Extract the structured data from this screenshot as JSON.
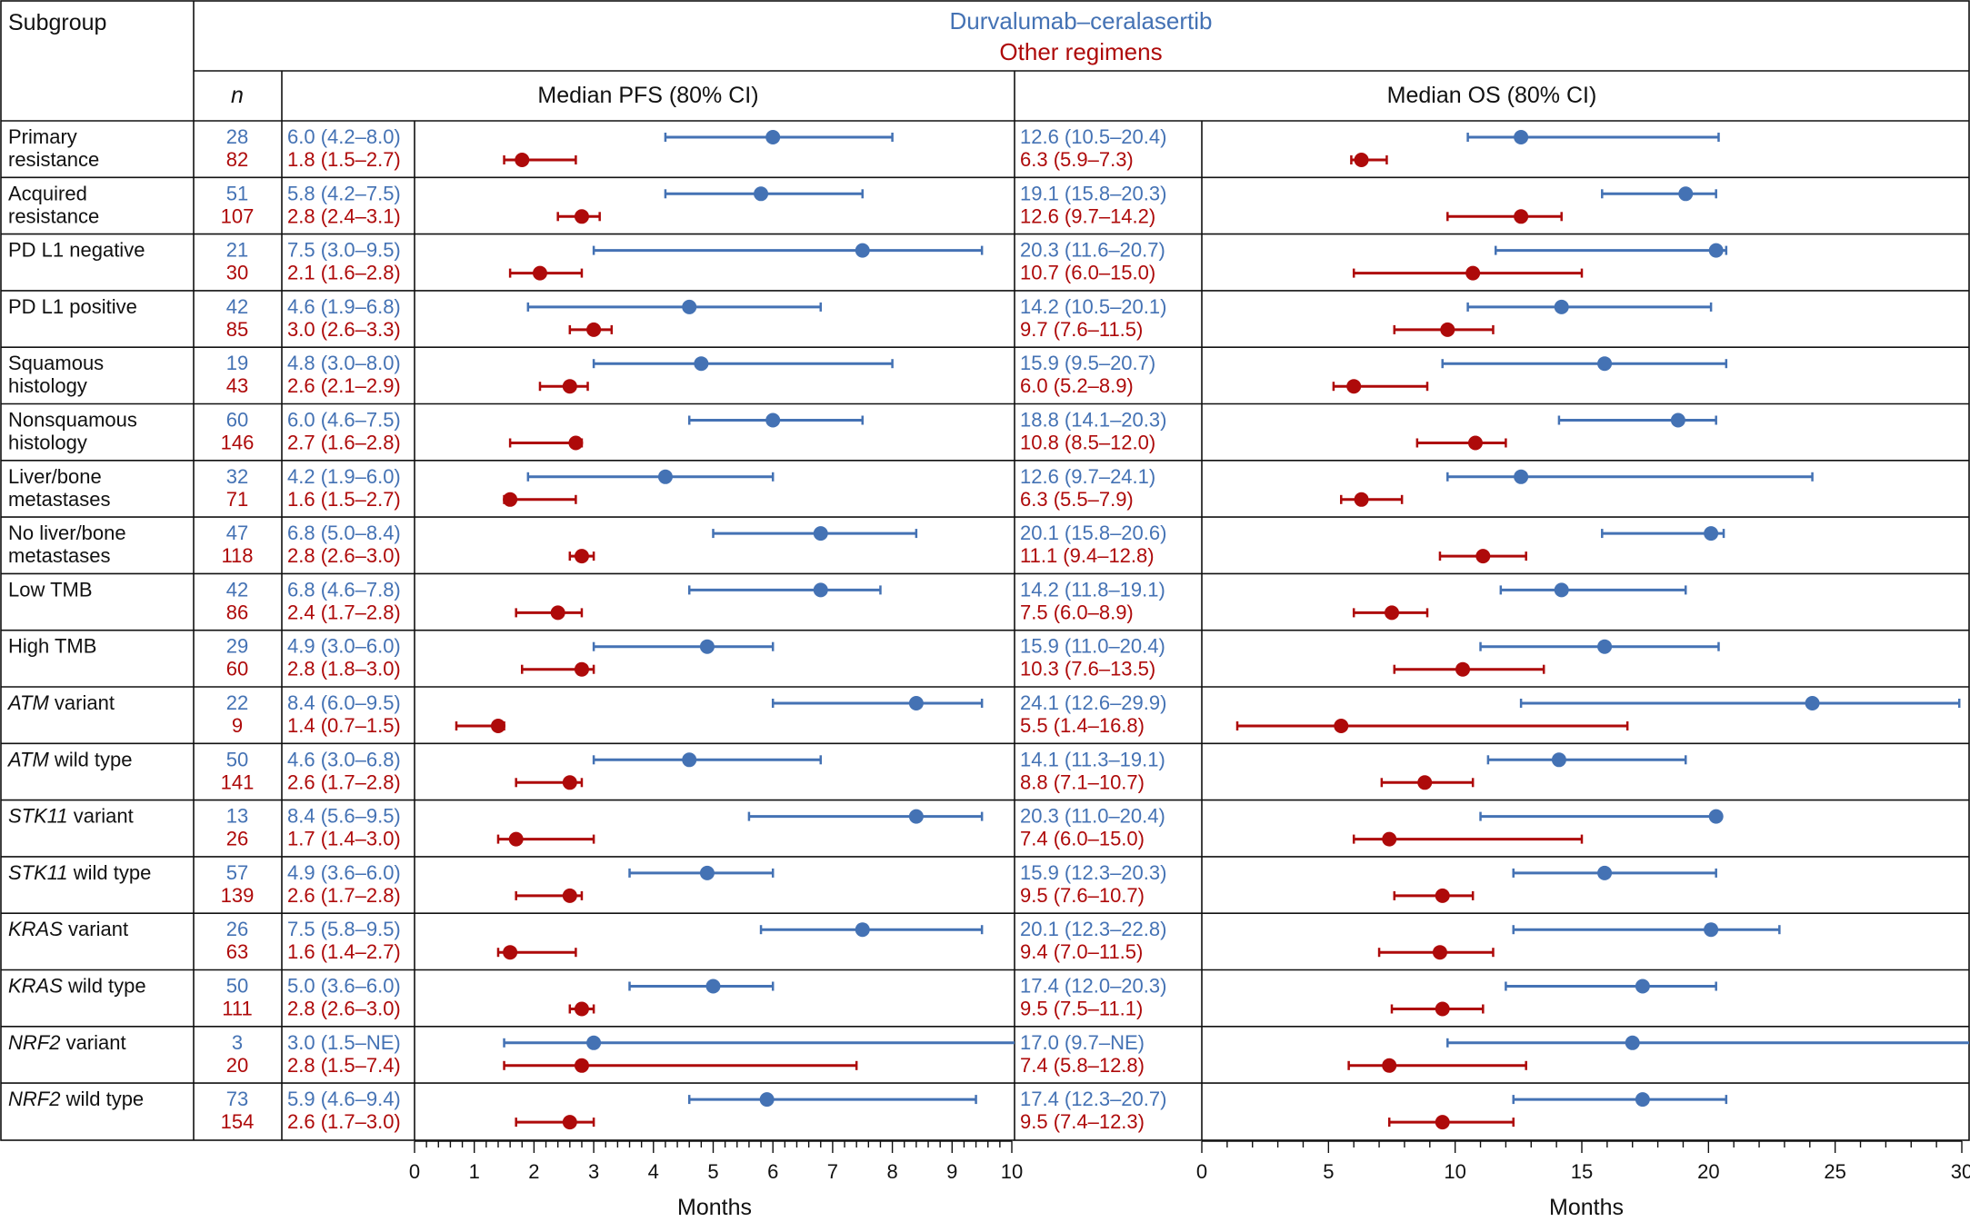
{
  "colors": {
    "durvalumab": "#4472b4",
    "other": "#ae0a0a",
    "line": "#111111"
  },
  "header": {
    "subgroup_label": "Subgroup",
    "n_label": "n",
    "pfs_label": "Median PFS (80% CI)",
    "os_label": "Median OS (80% CI)"
  },
  "chart_data": [
    {
      "type": "forest",
      "title": "Median PFS (80% CI)",
      "xlabel": "Months",
      "xlim": [
        0,
        10
      ],
      "major_ticks": [
        "0",
        "1",
        "2",
        "3",
        "4",
        "5",
        "6",
        "7",
        "8",
        "9",
        "10"
      ],
      "legend": [
        "Durvalumab–ceralasertib",
        "Other regimens"
      ]
    },
    {
      "type": "forest",
      "title": "Median OS (80% CI)",
      "xlabel": "Months",
      "xlim": [
        0,
        30
      ],
      "major_ticks": [
        "0",
        "5",
        "10",
        "15",
        "20",
        "25",
        "30"
      ],
      "legend": [
        "Durvalumab–ceralasertib",
        "Other regimens"
      ]
    }
  ],
  "rows": [
    {
      "label": "Primary resistance",
      "italic": "",
      "rest": "",
      "n": [
        28,
        82
      ],
      "pfs_text": [
        "6.0 (4.2–8.0)",
        "1.8 (1.5–2.7)"
      ],
      "pfs": [
        [
          6.0,
          4.2,
          8.0
        ],
        [
          1.8,
          1.5,
          2.7
        ]
      ],
      "os_text": [
        "12.6 (10.5–20.4)",
        "6.3 (5.9–7.3)"
      ],
      "os": [
        [
          12.6,
          10.5,
          20.4
        ],
        [
          6.3,
          5.9,
          7.3
        ]
      ]
    },
    {
      "label": "Acquired resistance",
      "italic": "",
      "rest": "",
      "n": [
        51,
        107
      ],
      "pfs_text": [
        "5.8 (4.2–7.5)",
        "2.8 (2.4–3.1)"
      ],
      "pfs": [
        [
          5.8,
          4.2,
          7.5
        ],
        [
          2.8,
          2.4,
          3.1
        ]
      ],
      "os_text": [
        "19.1 (15.8–20.3)",
        "12.6 (9.7–14.2)"
      ],
      "os": [
        [
          19.1,
          15.8,
          20.3
        ],
        [
          12.6,
          9.7,
          14.2
        ]
      ]
    },
    {
      "label": "PD L1 negative",
      "italic": "",
      "rest": "",
      "n": [
        21,
        30
      ],
      "pfs_text": [
        "7.5 (3.0–9.5)",
        "2.1 (1.6–2.8)"
      ],
      "pfs": [
        [
          7.5,
          3.0,
          9.5
        ],
        [
          2.1,
          1.6,
          2.8
        ]
      ],
      "os_text": [
        "20.3 (11.6–20.7)",
        "10.7 (6.0–15.0)"
      ],
      "os": [
        [
          20.3,
          11.6,
          20.7
        ],
        [
          10.7,
          6.0,
          15.0
        ]
      ]
    },
    {
      "label": "PD L1 positive",
      "italic": "",
      "rest": "",
      "n": [
        42,
        85
      ],
      "pfs_text": [
        "4.6 (1.9–6.8)",
        "3.0 (2.6–3.3)"
      ],
      "pfs": [
        [
          4.6,
          1.9,
          6.8
        ],
        [
          3.0,
          2.6,
          3.3
        ]
      ],
      "os_text": [
        "14.2 (10.5–20.1)",
        "9.7 (7.6–11.5)"
      ],
      "os": [
        [
          14.2,
          10.5,
          20.1
        ],
        [
          9.7,
          7.6,
          11.5
        ]
      ]
    },
    {
      "label": "Squamous histology",
      "italic": "",
      "rest": "",
      "n": [
        19,
        43
      ],
      "pfs_text": [
        "4.8 (3.0–8.0)",
        "2.6 (2.1–2.9)"
      ],
      "pfs": [
        [
          4.8,
          3.0,
          8.0
        ],
        [
          2.6,
          2.1,
          2.9
        ]
      ],
      "os_text": [
        "15.9 (9.5–20.7)",
        "6.0 (5.2–8.9)"
      ],
      "os": [
        [
          15.9,
          9.5,
          20.7
        ],
        [
          6.0,
          5.2,
          8.9
        ]
      ]
    },
    {
      "label": "Nonsquamous histology",
      "italic": "",
      "rest": "",
      "n": [
        60,
        146
      ],
      "pfs_text": [
        "6.0 (4.6–7.5)",
        "2.7 (1.6–2.8)"
      ],
      "pfs": [
        [
          6.0,
          4.6,
          7.5
        ],
        [
          2.7,
          1.6,
          2.8
        ]
      ],
      "os_text": [
        "18.8 (14.1–20.3)",
        "10.8 (8.5–12.0)"
      ],
      "os": [
        [
          18.8,
          14.1,
          20.3
        ],
        [
          10.8,
          8.5,
          12.0
        ]
      ]
    },
    {
      "label": "Liver/bone metastases",
      "italic": "",
      "rest": "",
      "n": [
        32,
        71
      ],
      "pfs_text": [
        "4.2 (1.9–6.0)",
        "1.6 (1.5–2.7)"
      ],
      "pfs": [
        [
          4.2,
          1.9,
          6.0
        ],
        [
          1.6,
          1.5,
          2.7
        ]
      ],
      "os_text": [
        "12.6 (9.7–24.1)",
        "6.3 (5.5–7.9)"
      ],
      "os": [
        [
          12.6,
          9.7,
          24.1
        ],
        [
          6.3,
          5.5,
          7.9
        ]
      ]
    },
    {
      "label": "No liver/bone metastases",
      "italic": "",
      "rest": "",
      "n": [
        47,
        118
      ],
      "pfs_text": [
        "6.8 (5.0–8.4)",
        "2.8 (2.6–3.0)"
      ],
      "pfs": [
        [
          6.8,
          5.0,
          8.4
        ],
        [
          2.8,
          2.6,
          3.0
        ]
      ],
      "os_text": [
        "20.1 (15.8–20.6)",
        "11.1 (9.4–12.8)"
      ],
      "os": [
        [
          20.1,
          15.8,
          20.6
        ],
        [
          11.1,
          9.4,
          12.8
        ]
      ]
    },
    {
      "label": "Low TMB",
      "italic": "",
      "rest": "",
      "n": [
        42,
        86
      ],
      "pfs_text": [
        "6.8 (4.6–7.8)",
        "2.4 (1.7–2.8)"
      ],
      "pfs": [
        [
          6.8,
          4.6,
          7.8
        ],
        [
          2.4,
          1.7,
          2.8
        ]
      ],
      "os_text": [
        "14.2 (11.8–19.1)",
        "7.5 (6.0–8.9)"
      ],
      "os": [
        [
          14.2,
          11.8,
          19.1
        ],
        [
          7.5,
          6.0,
          8.9
        ]
      ]
    },
    {
      "label": "High TMB",
      "italic": "",
      "rest": "",
      "n": [
        29,
        60
      ],
      "pfs_text": [
        "4.9 (3.0–6.0)",
        "2.8 (1.8–3.0)"
      ],
      "pfs": [
        [
          4.9,
          3.0,
          6.0
        ],
        [
          2.8,
          1.8,
          3.0
        ]
      ],
      "os_text": [
        "15.9 (11.0–20.4)",
        "10.3 (7.6–13.5)"
      ],
      "os": [
        [
          15.9,
          11.0,
          20.4
        ],
        [
          10.3,
          7.6,
          13.5
        ]
      ]
    },
    {
      "label": "",
      "italic": "ATM",
      "rest": " variant",
      "n": [
        22,
        9
      ],
      "pfs_text": [
        "8.4 (6.0–9.5)",
        "1.4 (0.7–1.5)"
      ],
      "pfs": [
        [
          8.4,
          6.0,
          9.5
        ],
        [
          1.4,
          0.7,
          1.5
        ]
      ],
      "os_text": [
        "24.1 (12.6–29.9)",
        "5.5 (1.4–16.8)"
      ],
      "os": [
        [
          24.1,
          12.6,
          29.9
        ],
        [
          5.5,
          1.4,
          16.8
        ]
      ]
    },
    {
      "label": "",
      "italic": "ATM",
      "rest": " wild type",
      "n": [
        50,
        141
      ],
      "pfs_text": [
        "4.6 (3.0–6.8)",
        "2.6 (1.7–2.8)"
      ],
      "pfs": [
        [
          4.6,
          3.0,
          6.8
        ],
        [
          2.6,
          1.7,
          2.8
        ]
      ],
      "os_text": [
        "14.1 (11.3–19.1)",
        "8.8 (7.1–10.7)"
      ],
      "os": [
        [
          14.1,
          11.3,
          19.1
        ],
        [
          8.8,
          7.1,
          10.7
        ]
      ]
    },
    {
      "label": "",
      "italic": "STK11",
      "rest": " variant",
      "n": [
        13,
        26
      ],
      "pfs_text": [
        "8.4 (5.6–9.5)",
        "1.7 (1.4–3.0)"
      ],
      "pfs": [
        [
          8.4,
          5.6,
          9.5
        ],
        [
          1.7,
          1.4,
          3.0
        ]
      ],
      "os_text": [
        "20.3 (11.0–20.4)",
        "7.4 (6.0–15.0)"
      ],
      "os": [
        [
          20.3,
          11.0,
          20.4
        ],
        [
          7.4,
          6.0,
          15.0
        ]
      ]
    },
    {
      "label": "",
      "italic": "STK11",
      "rest": " wild type",
      "n": [
        57,
        139
      ],
      "pfs_text": [
        "4.9 (3.6–6.0)",
        "2.6 (1.7–2.8)"
      ],
      "pfs": [
        [
          4.9,
          3.6,
          6.0
        ],
        [
          2.6,
          1.7,
          2.8
        ]
      ],
      "os_text": [
        "15.9 (12.3–20.3)",
        "9.5 (7.6–10.7)"
      ],
      "os": [
        [
          15.9,
          12.3,
          20.3
        ],
        [
          9.5,
          7.6,
          10.7
        ]
      ]
    },
    {
      "label": "",
      "italic": "KRAS",
      "rest": " variant",
      "n": [
        26,
        63
      ],
      "pfs_text": [
        "7.5 (5.8–9.5)",
        "1.6 (1.4–2.7)"
      ],
      "pfs": [
        [
          7.5,
          5.8,
          9.5
        ],
        [
          1.6,
          1.4,
          2.7
        ]
      ],
      "os_text": [
        "20.1 (12.3–22.8)",
        "9.4 (7.0–11.5)"
      ],
      "os": [
        [
          20.1,
          12.3,
          22.8
        ],
        [
          9.4,
          7.0,
          11.5
        ]
      ]
    },
    {
      "label": "",
      "italic": "KRAS",
      "rest": " wild type",
      "n": [
        50,
        111
      ],
      "pfs_text": [
        "5.0 (3.6–6.0)",
        "2.8 (2.6–3.0)"
      ],
      "pfs": [
        [
          5.0,
          3.6,
          6.0
        ],
        [
          2.8,
          2.6,
          3.0
        ]
      ],
      "os_text": [
        "17.4 (12.0–20.3)",
        "9.5 (7.5–11.1)"
      ],
      "os": [
        [
          17.4,
          12.0,
          20.3
        ],
        [
          9.5,
          7.5,
          11.1
        ]
      ]
    },
    {
      "label": "",
      "italic": "NRF2",
      "rest": " variant",
      "n": [
        3,
        20
      ],
      "pfs_text": [
        "3.0 (1.5–NE)",
        "2.8 (1.5–7.4)"
      ],
      "pfs": [
        [
          3.0,
          1.5,
          null
        ],
        [
          2.8,
          1.5,
          7.4
        ]
      ],
      "os_text": [
        "17.0 (9.7–NE)",
        "7.4 (5.8–12.8)"
      ],
      "os": [
        [
          17.0,
          9.7,
          null
        ],
        [
          7.4,
          5.8,
          12.8
        ]
      ]
    },
    {
      "label": "",
      "italic": "NRF2",
      "rest": " wild type",
      "n": [
        73,
        154
      ],
      "pfs_text": [
        "5.9 (4.6–9.4)",
        "2.6 (1.7–3.0)"
      ],
      "pfs": [
        [
          5.9,
          4.6,
          9.4
        ],
        [
          2.6,
          1.7,
          3.0
        ]
      ],
      "os_text": [
        "17.4 (12.3–20.7)",
        "9.5 (7.4–12.3)"
      ],
      "os": [
        [
          17.4,
          12.3,
          20.7
        ],
        [
          9.5,
          7.4,
          12.3
        ]
      ]
    }
  ]
}
